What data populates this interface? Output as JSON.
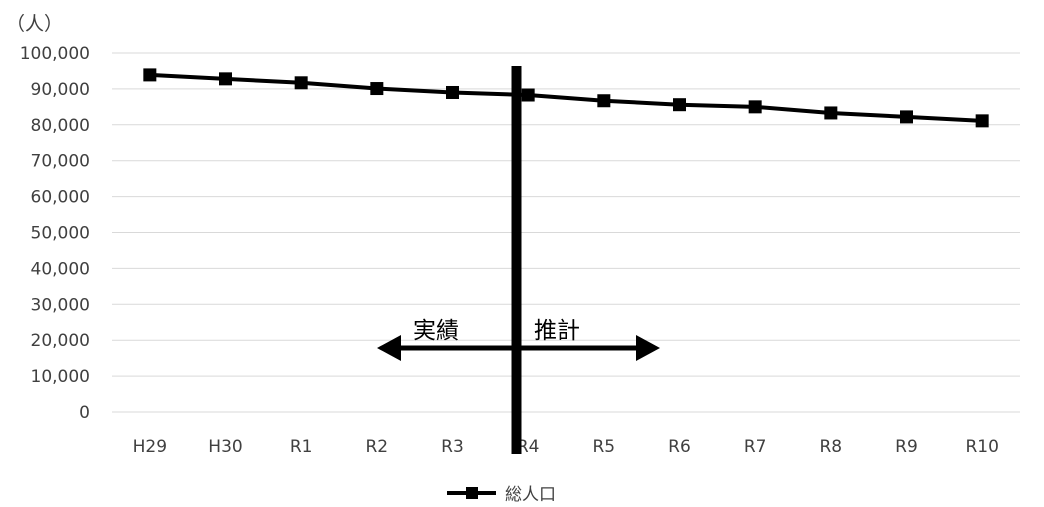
{
  "chart_data": {
    "type": "line",
    "unit_label": "（人）",
    "categories": [
      "H29",
      "H30",
      "R1",
      "R2",
      "R3",
      "R4",
      "R5",
      "R6",
      "R7",
      "R8",
      "R9",
      "R10"
    ],
    "series": [
      {
        "name": "総人口",
        "color": "#000000",
        "marker": "square",
        "values": [
          93900,
          92800,
          91700,
          90100,
          89000,
          88300,
          86700,
          85600,
          85000,
          83300,
          82200,
          81100
        ]
      }
    ],
    "ylim": [
      0,
      100000
    ],
    "ytick_step": 10000,
    "yticks": [
      "0",
      "10,000",
      "20,000",
      "30,000",
      "40,000",
      "50,000",
      "60,000",
      "70,000",
      "80,000",
      "90,000",
      "100,000"
    ],
    "grid": true,
    "legend_position": "bottom",
    "annotations": {
      "actual_label": "実績",
      "forecast_label": "推計",
      "divider_between": [
        "R3",
        "R4"
      ]
    }
  }
}
